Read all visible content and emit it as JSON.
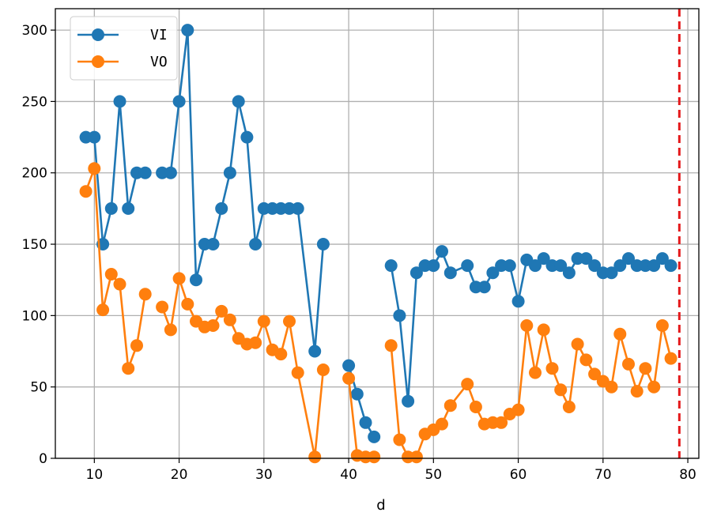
{
  "chart_data": {
    "type": "line",
    "title": "",
    "xlabel": "d",
    "ylabel": "",
    "xlim": [
      5.4,
      81.3
    ],
    "ylim": [
      0,
      315
    ],
    "x_ticks": [
      10,
      20,
      30,
      40,
      50,
      60,
      70,
      80
    ],
    "y_ticks": [
      0,
      50,
      100,
      150,
      200,
      250,
      300
    ],
    "grid": true,
    "legend": "top-left",
    "vline": {
      "x": 79,
      "color": "#e41a1c",
      "style": "dashed"
    },
    "series": [
      {
        "name": "VI",
        "color": "#1f77b4",
        "segments": [
          [
            [
              9,
              225
            ],
            [
              10,
              225
            ],
            [
              11,
              150
            ],
            [
              12,
              175
            ],
            [
              13,
              250
            ],
            [
              14,
              175
            ],
            [
              15,
              200
            ],
            [
              16,
              200
            ]
          ],
          [
            [
              18,
              200
            ],
            [
              19,
              200
            ],
            [
              20,
              250
            ],
            [
              21,
              300
            ],
            [
              22,
              125
            ],
            [
              23,
              150
            ],
            [
              24,
              150
            ],
            [
              25,
              175
            ],
            [
              26,
              200
            ],
            [
              27,
              250
            ],
            [
              28,
              225
            ],
            [
              29,
              150
            ],
            [
              30,
              175
            ],
            [
              31,
              175
            ],
            [
              32,
              175
            ],
            [
              33,
              175
            ],
            [
              34,
              175
            ],
            [
              36,
              75
            ],
            [
              37,
              150
            ]
          ],
          [
            [
              40,
              65
            ],
            [
              41,
              45
            ],
            [
              42,
              25
            ],
            [
              43,
              15
            ]
          ],
          [
            [
              45,
              135
            ],
            [
              46,
              100
            ],
            [
              47,
              40
            ],
            [
              48,
              130
            ],
            [
              49,
              135
            ],
            [
              50,
              135
            ],
            [
              51,
              145
            ],
            [
              52,
              130
            ],
            [
              54,
              135
            ],
            [
              55,
              120
            ],
            [
              56,
              120
            ],
            [
              57,
              130
            ],
            [
              58,
              135
            ],
            [
              59,
              135
            ],
            [
              60,
              110
            ],
            [
              61,
              139
            ],
            [
              62,
              135
            ],
            [
              63,
              140
            ],
            [
              64,
              135
            ],
            [
              65,
              135
            ],
            [
              66,
              130
            ],
            [
              67,
              140
            ],
            [
              68,
              140
            ],
            [
              69,
              135
            ],
            [
              70,
              130
            ],
            [
              71,
              130
            ],
            [
              72,
              135
            ],
            [
              73,
              140
            ],
            [
              74,
              135
            ],
            [
              75,
              135
            ],
            [
              76,
              135
            ],
            [
              77,
              140
            ],
            [
              78,
              135
            ]
          ]
        ]
      },
      {
        "name": "VO",
        "color": "#ff7f0e",
        "segments": [
          [
            [
              9,
              187
            ],
            [
              10,
              203
            ],
            [
              11,
              104
            ],
            [
              12,
              129
            ],
            [
              13,
              122
            ],
            [
              14,
              63
            ],
            [
              15,
              79
            ],
            [
              16,
              115
            ]
          ],
          [
            [
              18,
              106
            ],
            [
              19,
              90
            ],
            [
              20,
              126
            ],
            [
              21,
              108
            ],
            [
              22,
              96
            ],
            [
              23,
              92
            ],
            [
              24,
              93
            ],
            [
              25,
              103
            ],
            [
              26,
              97
            ],
            [
              27,
              84
            ],
            [
              28,
              80
            ],
            [
              29,
              81
            ],
            [
              30,
              96
            ],
            [
              31,
              76
            ],
            [
              32,
              73
            ],
            [
              33,
              96
            ],
            [
              34,
              60
            ],
            [
              36,
              1
            ],
            [
              37,
              62
            ]
          ],
          [
            [
              40,
              56
            ],
            [
              41,
              2
            ],
            [
              42,
              1
            ],
            [
              43,
              1
            ]
          ],
          [
            [
              45,
              79
            ],
            [
              46,
              13
            ],
            [
              47,
              1
            ],
            [
              48,
              1
            ],
            [
              49,
              17
            ],
            [
              50,
              20
            ],
            [
              51,
              24
            ],
            [
              52,
              37
            ],
            [
              54,
              52
            ],
            [
              55,
              36
            ],
            [
              56,
              24
            ],
            [
              57,
              25
            ],
            [
              58,
              25
            ],
            [
              59,
              31
            ],
            [
              60,
              34
            ],
            [
              61,
              93
            ],
            [
              62,
              60
            ],
            [
              63,
              90
            ],
            [
              64,
              63
            ],
            [
              65,
              48
            ],
            [
              66,
              36
            ],
            [
              67,
              80
            ],
            [
              68,
              69
            ],
            [
              69,
              59
            ],
            [
              70,
              54
            ],
            [
              71,
              50
            ],
            [
              72,
              87
            ],
            [
              73,
              66
            ],
            [
              74,
              47
            ],
            [
              75,
              63
            ],
            [
              76,
              50
            ],
            [
              77,
              93
            ],
            [
              78,
              70
            ]
          ]
        ]
      }
    ]
  }
}
